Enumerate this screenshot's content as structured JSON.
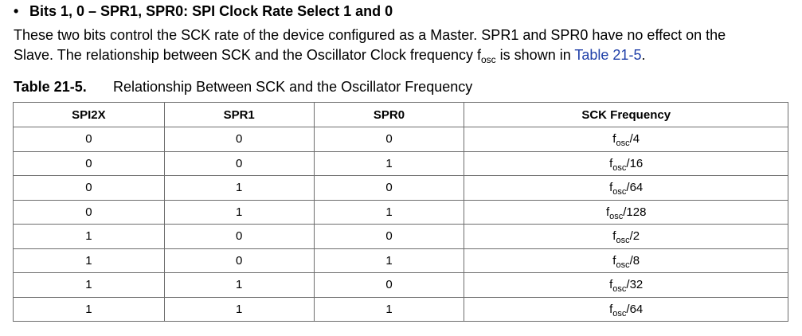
{
  "heading": {
    "bullet": "•",
    "text": "Bits 1, 0 – SPR1, SPR0: SPI Clock Rate Select 1 and 0"
  },
  "paragraph": {
    "line1": "These two bits control the SCK rate of the device configured as a Master. SPR1 and SPR0 have no effect on the",
    "line2_pre": "Slave. The relationship between SCK and the Oscillator Clock frequency f",
    "line2_sub": "osc",
    "line2_mid": " is shown in ",
    "line2_link": "Table 21-5",
    "line2_post": "."
  },
  "table_caption": {
    "number": "Table 21-5.",
    "title": "Relationship Between SCK and the Oscillator Frequency"
  },
  "table": {
    "headers": [
      "SPI2X",
      "SPR1",
      "SPR0",
      "SCK Frequency"
    ],
    "rows": [
      {
        "spi2x": "0",
        "spr1": "0",
        "spr0": "0",
        "f": "f",
        "sub": "osc",
        "div": "/4"
      },
      {
        "spi2x": "0",
        "spr1": "0",
        "spr0": "1",
        "f": "f",
        "sub": "osc",
        "div": "/16"
      },
      {
        "spi2x": "0",
        "spr1": "1",
        "spr0": "0",
        "f": "f",
        "sub": "osc",
        "div": "/64"
      },
      {
        "spi2x": "0",
        "spr1": "1",
        "spr0": "1",
        "f": "f",
        "sub": "osc",
        "div": "/128"
      },
      {
        "spi2x": "1",
        "spr1": "0",
        "spr0": "0",
        "f": "f",
        "sub": "osc",
        "div": "/2"
      },
      {
        "spi2x": "1",
        "spr1": "0",
        "spr0": "1",
        "f": "f",
        "sub": "osc",
        "div": "/8"
      },
      {
        "spi2x": "1",
        "spr1": "1",
        "spr0": "0",
        "f": "f",
        "sub": "osc",
        "div": "/32"
      },
      {
        "spi2x": "1",
        "spr1": "1",
        "spr0": "1",
        "f": "f",
        "sub": "osc",
        "div": "/64"
      }
    ]
  },
  "colors": {
    "link": "#1f3fa8",
    "text": "#000000",
    "border": "#6d6d6d"
  }
}
